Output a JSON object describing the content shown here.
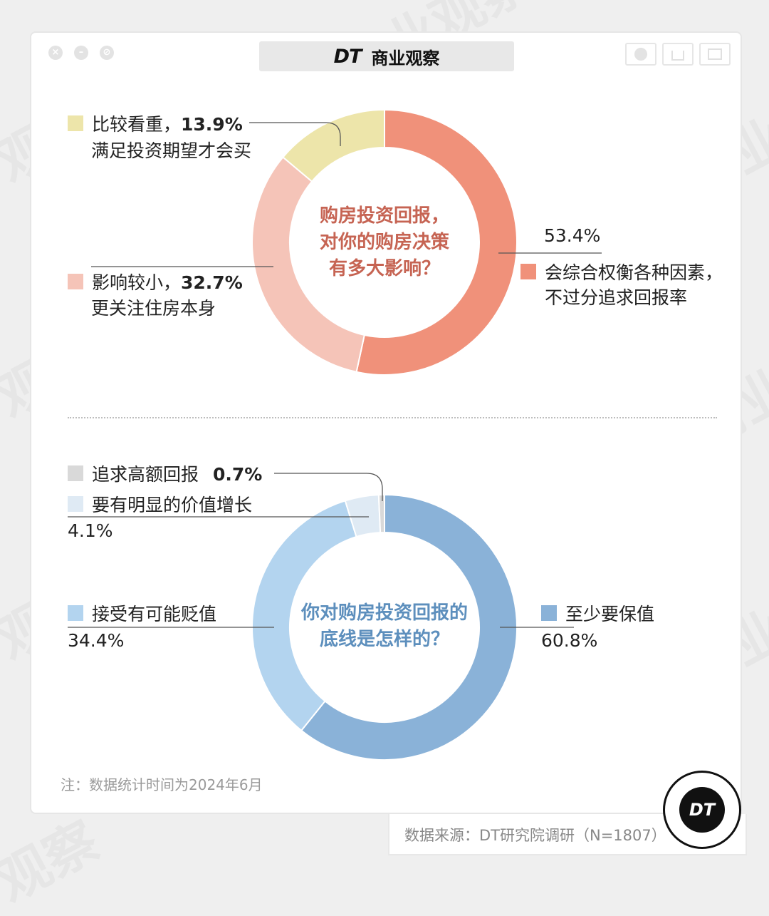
{
  "header": {
    "logo": "DT",
    "title": "商业观察"
  },
  "colors": {
    "salmon": "#f0917a",
    "pink": "#f5c4b8",
    "cream": "#ede5aa",
    "blue_dark": "#8ab2d8",
    "blue_light": "#b3d4ef",
    "blue_pale": "#dfeaf4",
    "gray": "#d9d9d9",
    "title_red": "#c66453",
    "title_blue": "#5d8fbd"
  },
  "chart_data": [
    {
      "type": "pie",
      "title": "购房投资回报，对你的购房决策有多大影响？",
      "title_lines": [
        "购房投资回报，",
        "对你的购房决策",
        "有多大影响？"
      ],
      "series": [
        {
          "name": "会综合权衡各种因素，不过分追求回报率",
          "value": 53.4,
          "value_label": "53.4%",
          "label_lines": [
            "会综合权衡各种因素，",
            "不过分追求回报率"
          ],
          "color": "#f0917a"
        },
        {
          "name": "影响较小，更关注住房本身",
          "value": 32.7,
          "value_label": "32.7%",
          "label_head": "影响较小，",
          "label_sub": "更关注住房本身",
          "color": "#f5c4b8"
        },
        {
          "name": "比较看重，满足投资期望才会买",
          "value": 13.9,
          "value_label": "13.9%",
          "label_head": "比较看重，",
          "label_sub": "满足投资期望才会买",
          "color": "#ede5aa"
        }
      ]
    },
    {
      "type": "pie",
      "title": "你对购房投资回报的底线是怎样的？",
      "title_lines": [
        "你对购房投资回报的",
        "底线是怎样的？"
      ],
      "series": [
        {
          "name": "至少要保值",
          "value": 60.8,
          "value_label": "60.8%",
          "color": "#8ab2d8"
        },
        {
          "name": "接受有可能贬值",
          "value": 34.4,
          "value_label": "34.4%",
          "color": "#b3d4ef"
        },
        {
          "name": "要有明显的价值增长",
          "value": 4.1,
          "value_label": "4.1%",
          "color": "#dfeaf4"
        },
        {
          "name": "追求高额回报",
          "value": 0.7,
          "value_label": "0.7%",
          "color": "#d9d9d9"
        }
      ]
    }
  ],
  "note": "注：数据统计时间为2024年6月",
  "source": "数据来源：DT研究院调研（N=1807）",
  "badge": "DT"
}
